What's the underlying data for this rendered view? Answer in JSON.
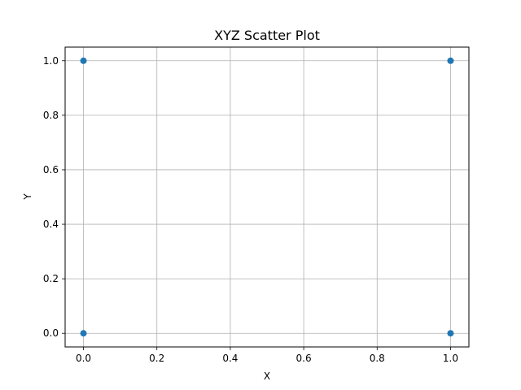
{
  "chart_data": {
    "type": "scatter",
    "title": "XYZ Scatter Plot",
    "xlabel": "X",
    "ylabel": "Y",
    "xlim": [
      -0.05,
      1.05
    ],
    "ylim": [
      -0.05,
      1.05
    ],
    "xticks": [
      0.0,
      0.2,
      0.4,
      0.6,
      0.8,
      1.0
    ],
    "yticks": [
      0.0,
      0.2,
      0.4,
      0.6,
      0.8,
      1.0
    ],
    "xtick_labels": [
      "0.0",
      "0.2",
      "0.4",
      "0.6",
      "0.8",
      "1.0"
    ],
    "ytick_labels": [
      "0.0",
      "0.2",
      "0.4",
      "0.6",
      "0.8",
      "1.0"
    ],
    "grid": true,
    "series": [
      {
        "color": "#1f77b4",
        "x": [
          0,
          1,
          0,
          1
        ],
        "y": [
          0,
          0,
          1,
          1
        ]
      }
    ]
  }
}
